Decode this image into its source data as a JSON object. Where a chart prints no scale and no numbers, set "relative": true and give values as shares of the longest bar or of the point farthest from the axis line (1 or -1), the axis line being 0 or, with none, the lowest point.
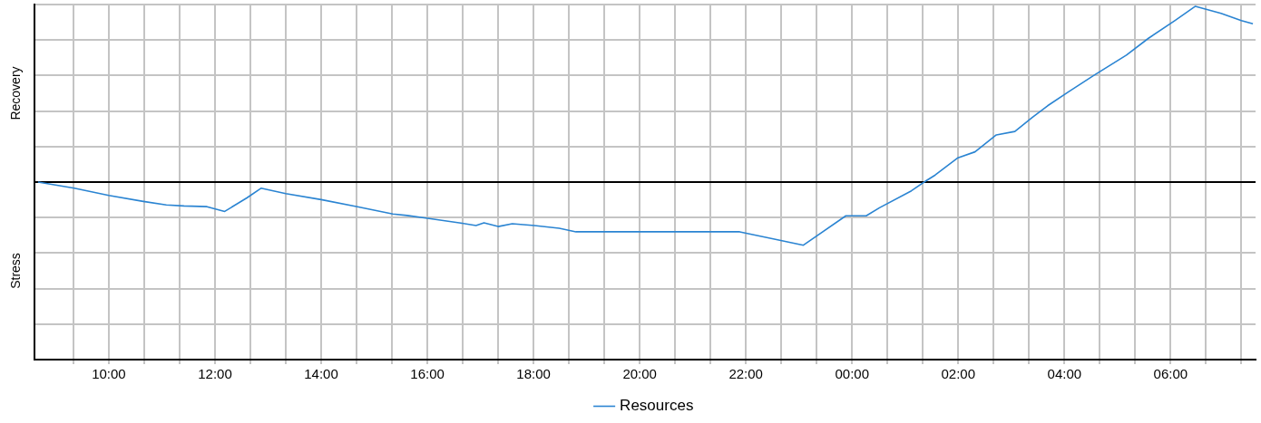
{
  "chart_data": {
    "type": "line",
    "relative": true,
    "annotations": [
      "Recovery",
      "Stress"
    ],
    "xlim": [
      "--01-01T08:36",
      "--01-02T07:36"
    ],
    "xticks": [
      {
        "value": "--01-01T09:20",
        "label": null
      },
      {
        "value": "--01-01T10:00",
        "label": "10:00"
      },
      {
        "value": "--01-01T10:40",
        "label": null
      },
      {
        "value": "--01-01T11:20",
        "label": null
      },
      {
        "value": "--01-01T12:00",
        "label": "12:00"
      },
      {
        "value": "--01-01T12:40",
        "label": null
      },
      {
        "value": "--01-01T13:20",
        "label": null
      },
      {
        "value": "--01-01T14:00",
        "label": "14:00"
      },
      {
        "value": "--01-01T14:40",
        "label": null
      },
      {
        "value": "--01-01T15:20",
        "label": null
      },
      {
        "value": "--01-01T16:00",
        "label": "16:00"
      },
      {
        "value": "--01-01T16:40",
        "label": null
      },
      {
        "value": "--01-01T17:20",
        "label": null
      },
      {
        "value": "--01-01T18:00",
        "label": "18:00"
      },
      {
        "value": "--01-01T18:40",
        "label": null
      },
      {
        "value": "--01-01T19:20",
        "label": null
      },
      {
        "value": "--01-01T20:00",
        "label": "20:00"
      },
      {
        "value": "--01-01T20:40",
        "label": null
      },
      {
        "value": "--01-01T21:20",
        "label": null
      },
      {
        "value": "--01-01T22:00",
        "label": "22:00"
      },
      {
        "value": "--01-01T22:40",
        "label": null
      },
      {
        "value": "--01-01T23:20",
        "label": null
      },
      {
        "value": "--01-02T00:00",
        "label": "00:00"
      },
      {
        "value": "--01-02T00:40",
        "label": null
      },
      {
        "value": "--01-02T01:20",
        "label": null
      },
      {
        "value": "--01-02T02:00",
        "label": "02:00"
      },
      {
        "value": "--01-02T02:40",
        "label": null
      },
      {
        "value": "--01-02T03:20",
        "label": null
      },
      {
        "value": "--01-02T04:00",
        "label": "04:00"
      },
      {
        "value": "--01-02T04:40",
        "label": null
      },
      {
        "value": "--01-02T05:20",
        "label": null
      },
      {
        "value": "--01-02T06:00",
        "label": "06:00"
      },
      {
        "value": "--01-02T06:40",
        "label": null
      },
      {
        "value": "--01-02T07:20",
        "label": null
      }
    ],
    "grid": true,
    "legend": "bottom",
    "marker": "none",
    "line_style": "solid",
    "series": [
      {
        "name": "Resources",
        "color": "#2a84d2",
        "x": [
          "--01-01T08:40",
          "--01-01T09:21",
          "--01-01T10:00",
          "--01-01T10:39",
          "--01-01T11:05",
          "--01-01T11:25",
          "--01-01T11:51",
          "--01-01T12:11",
          "--01-01T12:36",
          "--01-01T12:52",
          "--01-01T13:20",
          "--01-01T14:00",
          "--01-01T14:41",
          "--01-01T15:21",
          "--01-01T15:37",
          "--01-01T16:02",
          "--01-01T16:36",
          "--01-01T16:55",
          "--01-01T17:04",
          "--01-01T17:20",
          "--01-01T17:36",
          "--01-01T18:01",
          "--01-01T18:29",
          "--01-01T18:48",
          "--01-01T21:53",
          "--01-01T22:31",
          "--01-01T23:05",
          "--01-01T23:53",
          "--01-02T00:16",
          "--01-02T00:31",
          "--01-02T01:07",
          "--01-02T01:23",
          "--01-02T01:34",
          "--01-02T01:59",
          "--01-02T02:19",
          "--01-02T02:43",
          "--01-02T03:04",
          "--01-02T03:24",
          "--01-02T03:41",
          "--01-02T04:05",
          "--01-02T04:33",
          "--01-02T05:10",
          "--01-02T05:35",
          "--01-02T06:05",
          "--01-02T06:28",
          "--01-02T06:57",
          "--01-02T07:20",
          "--01-02T07:33"
        ],
        "values": [
          0,
          -0.035,
          -0.076,
          -0.11,
          -0.13,
          -0.136,
          -0.14,
          -0.167,
          -0.09,
          -0.035,
          -0.066,
          -0.1,
          -0.14,
          -0.182,
          -0.19,
          -0.207,
          -0.232,
          -0.247,
          -0.232,
          -0.253,
          -0.237,
          -0.247,
          -0.263,
          -0.283,
          -0.283,
          -0.323,
          -0.359,
          -0.192,
          -0.192,
          -0.146,
          -0.05,
          0.005,
          0.04,
          0.136,
          0.172,
          0.268,
          0.288,
          0.369,
          0.434,
          0.515,
          0.606,
          0.722,
          0.818,
          0.919,
          1,
          0.96,
          0.919,
          0.9
        ]
      }
    ]
  }
}
